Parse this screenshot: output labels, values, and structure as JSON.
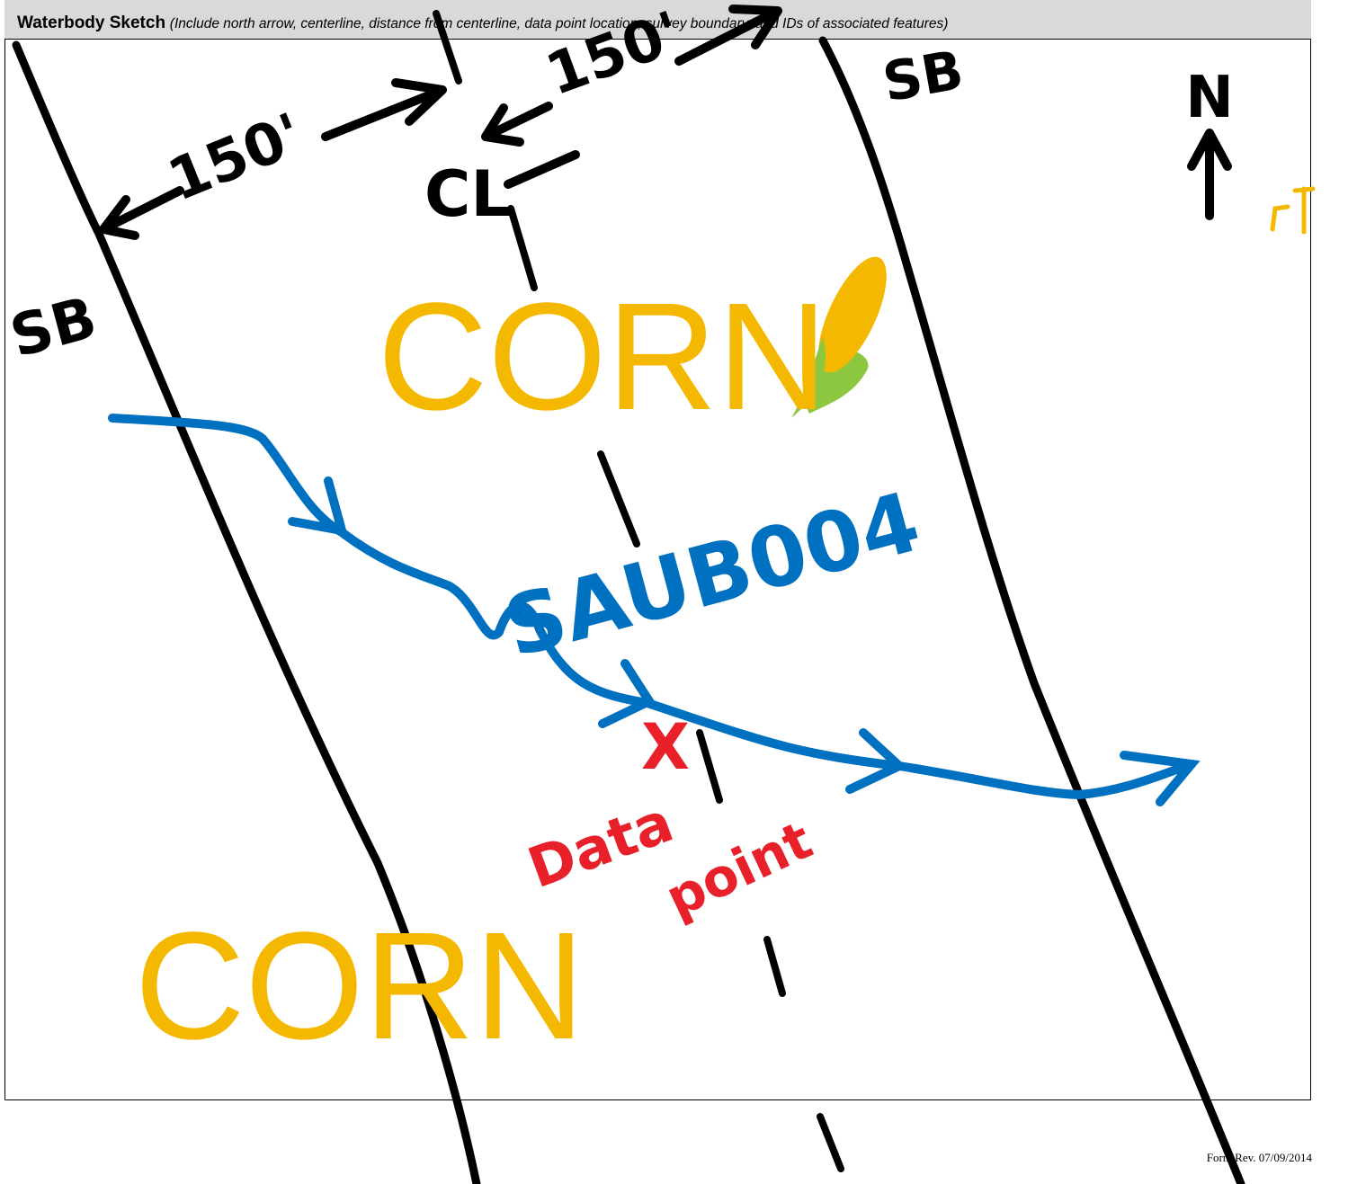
{
  "header": {
    "title": "Waterbody Sketch",
    "instructions": "(Include north arrow, centerline, distance from centerline, data point location, survey boundary, and IDs of associated features)"
  },
  "sketch": {
    "annotations": [
      "150'",
      "150'",
      "SB",
      "SB",
      "CL",
      "N",
      "CORN",
      "CORN",
      "SAUB004",
      "X",
      "Data",
      "point"
    ]
  },
  "footer": "Form Rev. 07/09/2014"
}
